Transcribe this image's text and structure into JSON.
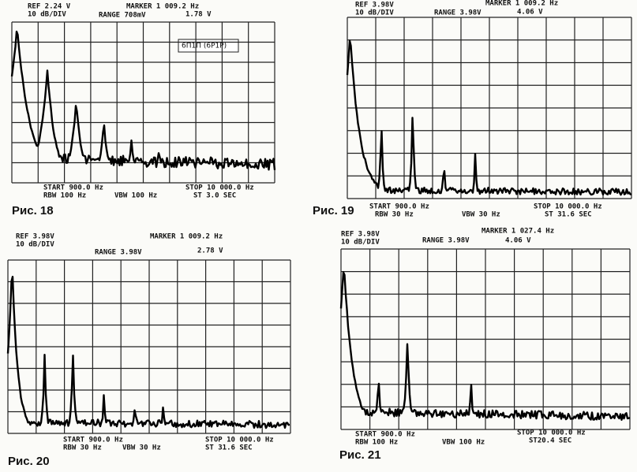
{
  "figures": [
    {
      "header": {
        "ref": "REF 2.24 V",
        "scale": "10 dB/DIV",
        "marker": "MARKER 1 009.2 Hz",
        "range": "RANGE 708mV",
        "level": "1.78 V"
      },
      "tag": "6П1П (6P1P)",
      "footer": {
        "start": "START 900.0 Hz",
        "rbw": "RBW 100 Hz",
        "vbw": "VBW 100 Hz",
        "stop": "STOP 10 000.0 Hz",
        "st": "ST 3.0 SEC"
      },
      "caption": "Рис. 18"
    },
    {
      "header": {
        "ref": "REF 3.98V",
        "scale": "10 dB/DIV",
        "marker": "MARKER 1 009.2 Hz",
        "range": "RANGE 3.98V",
        "level": "4.06 V"
      },
      "footer": {
        "start": "START 900.0 Hz",
        "rbw": "RBW 30 Hz",
        "vbw": "VBW 30 Hz",
        "stop": "STOP 10 000.0 Hz",
        "st": "ST 31.6 SEC"
      },
      "caption": "Рис. 19"
    },
    {
      "header": {
        "ref": "REF 3.98V",
        "scale": "10 dB/DIV",
        "marker": "MARKER 1 009.2 Hz",
        "range": "RANGE 3.98V",
        "level": "2.78 V"
      },
      "footer": {
        "start": "START 900.0 Hz",
        "rbw": "RBW 30 Hz",
        "vbw": "VBW 30 Hz",
        "stop": "STOP 10 000.0 Hz",
        "st": "ST 31.6 SEC"
      },
      "caption": "Рис. 20"
    },
    {
      "header": {
        "ref": "REF 3.98V",
        "scale": "10 dB/DIV",
        "marker": "MARKER 1 027.4 Hz",
        "range": "RANGE 3.98V",
        "level": "4.06 V"
      },
      "footer": {
        "start": "START 900.0 Hz",
        "rbw": "RBW 100 Hz",
        "vbw": "VBW 100 Hz",
        "stop": "STOP 10 000.0 Hz",
        "st": "ST20.4 SEC"
      },
      "caption": "Рис. 21"
    }
  ]
}
